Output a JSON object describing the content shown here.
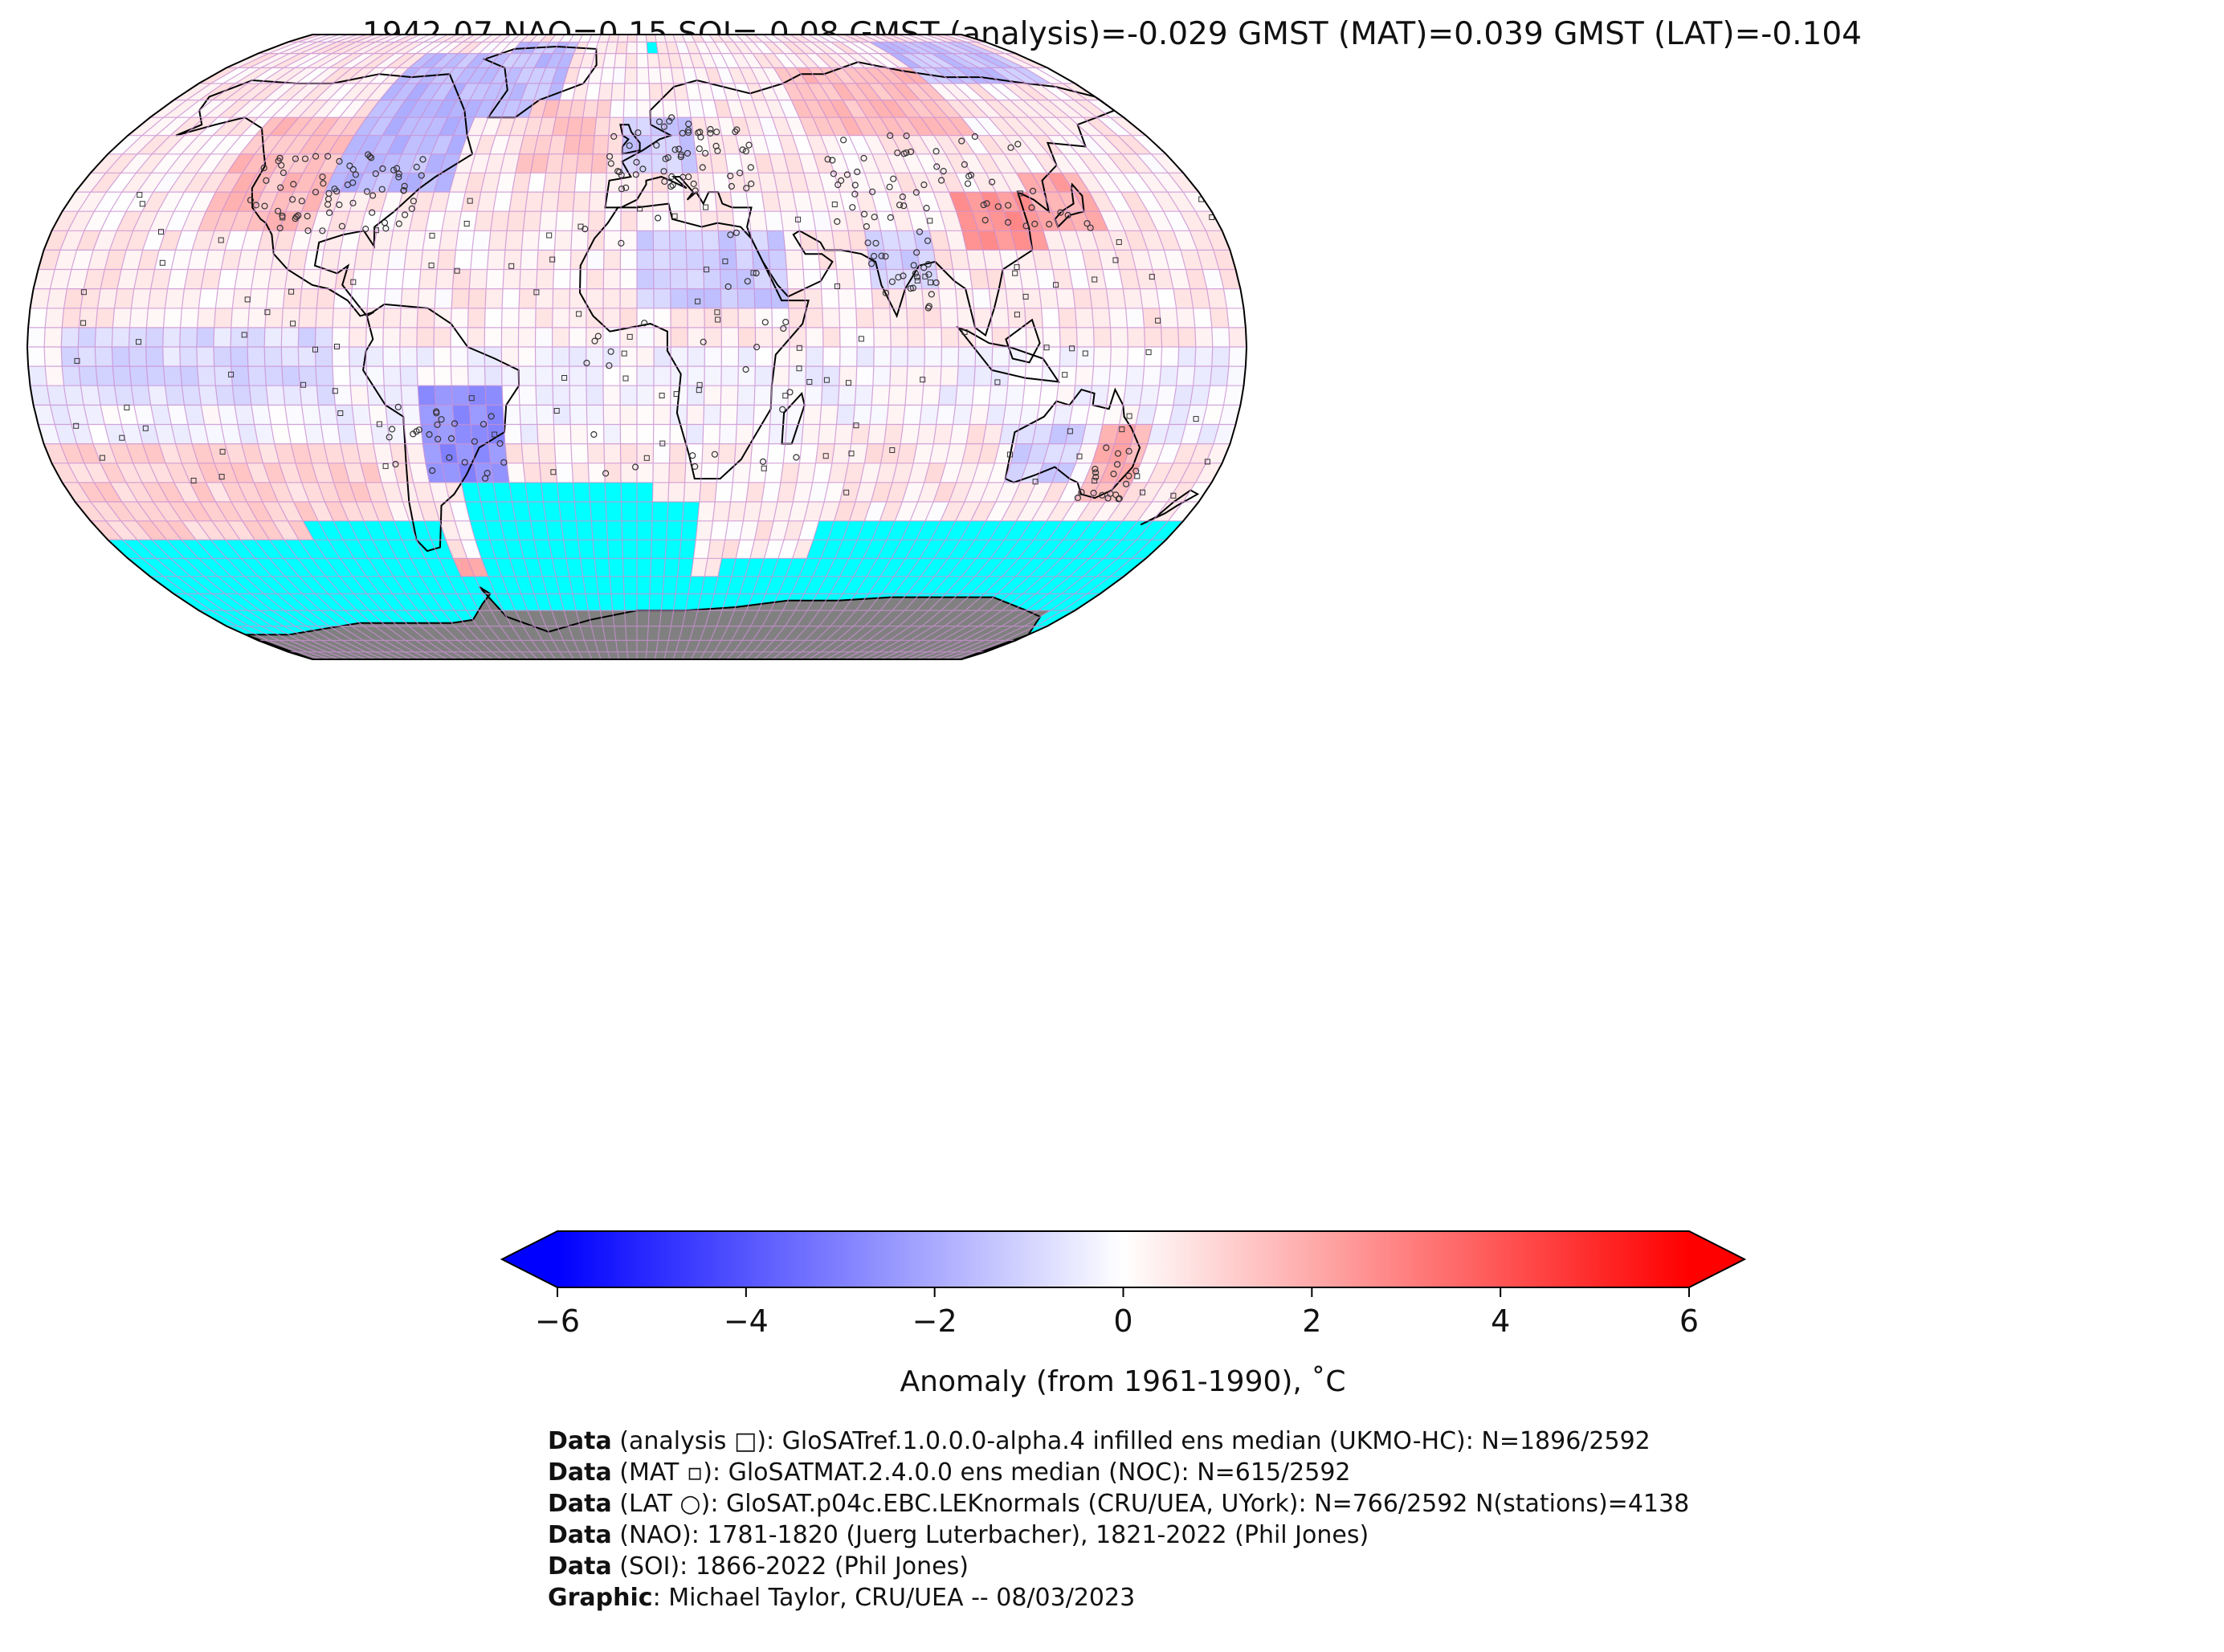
{
  "title": "1942-07 NAO=0.15 SOI=-0.08 GMST (analysis)=-0.029 GMST (MAT)=0.039 GMST (LAT)=-0.104",
  "colors": {
    "no_data_fill": "#00ffff",
    "land_ice": "#808080",
    "grid_line": "#c88fd1",
    "coast": "#000000",
    "cmap_min": "#0000ff",
    "cmap_mid": "#ffffff",
    "cmap_max": "#ff0000"
  },
  "colorbar": {
    "label": "Anomaly (from 1961-1990), ˚C",
    "min": -6,
    "max": 6,
    "ticks": [
      "−6",
      "−4",
      "−2",
      "0",
      "2",
      "4",
      "6"
    ],
    "tick_values": [
      -6,
      -4,
      -2,
      0,
      2,
      4,
      6
    ],
    "extend": "both"
  },
  "footer": [
    {
      "bold": "Data",
      "text": " (analysis □): GloSATref.1.0.0.0-alpha.4 infilled ens median (UKMO-HC): N=1896/2592"
    },
    {
      "bold": "Data",
      "text": " (MAT ▫): GloSATMAT.2.4.0.0 ens median (NOC): N=615/2592"
    },
    {
      "bold": "Data",
      "text": " (LAT ○): GloSAT.p04c.EBC.LEKnormals (CRU/UEA, UYork): N=766/2592 N(stations)=4138"
    },
    {
      "bold": "Data",
      "text": " (NAO): 1781-1820 (Juerg Luterbacher), 1821-2022 (Phil Jones)"
    },
    {
      "bold": "Data",
      "text": " (SOI): 1866-2022 (Phil Jones)"
    },
    {
      "bold": "Graphic",
      "text": ": Michael Taylor, CRU/UEA -- 08/03/2023"
    }
  ],
  "map": {
    "projection": "robinson",
    "grid_resolution_deg": 5,
    "anomaly_regions": [
      {
        "name": "north-america-west",
        "lon": [
          -135,
          -100
        ],
        "lat": [
          30,
          60
        ],
        "value": 1.5
      },
      {
        "name": "north-america-east-cold",
        "lon": [
          -100,
          -60
        ],
        "lat": [
          40,
          80
        ],
        "value": -1.6
      },
      {
        "name": "greenland-cold",
        "lon": [
          -60,
          -30
        ],
        "lat": [
          60,
          85
        ],
        "value": -1.5
      },
      {
        "name": "north-atlantic-warm",
        "lon": [
          -40,
          -10
        ],
        "lat": [
          45,
          65
        ],
        "value": 1.2
      },
      {
        "name": "europe-cold",
        "lon": [
          -5,
          20
        ],
        "lat": [
          45,
          60
        ],
        "value": -1.2
      },
      {
        "name": "siberia-warm",
        "lon": [
          60,
          120
        ],
        "lat": [
          55,
          75
        ],
        "value": 1.5
      },
      {
        "name": "arctic-asia-cold",
        "lon": [
          120,
          170
        ],
        "lat": [
          70,
          85
        ],
        "value": -1.4
      },
      {
        "name": "china-warm",
        "lon": [
          100,
          125
        ],
        "lat": [
          25,
          40
        ],
        "value": 2.5
      },
      {
        "name": "japan-warm",
        "lon": [
          125,
          145
        ],
        "lat": [
          30,
          45
        ],
        "value": 2.0
      },
      {
        "name": "africa-north-cold",
        "lon": [
          0,
          45
        ],
        "lat": [
          10,
          30
        ],
        "value": -1.2
      },
      {
        "name": "india-cold",
        "lon": [
          70,
          90
        ],
        "lat": [
          15,
          30
        ],
        "value": -1.0
      },
      {
        "name": "south-america-cold",
        "lon": [
          -65,
          -40
        ],
        "lat": [
          -35,
          -10
        ],
        "value": -2.6
      },
      {
        "name": "tropical-pacific-cold",
        "lon": [
          -170,
          -90
        ],
        "lat": [
          -15,
          5
        ],
        "value": -0.8
      },
      {
        "name": "australia-east-warm",
        "lon": [
          140,
          155
        ],
        "lat": [
          -40,
          -20
        ],
        "value": 1.8
      },
      {
        "name": "australia-west-cold",
        "lon": [
          115,
          135
        ],
        "lat": [
          -35,
          -20
        ],
        "value": -1.0
      },
      {
        "name": "drake-passage-warm",
        "lon": [
          -70,
          -30
        ],
        "lat": [
          -70,
          -55
        ],
        "value": 2.0
      },
      {
        "name": "south-pacific-warm",
        "lon": [
          -180,
          -80
        ],
        "lat": [
          -50,
          -25
        ],
        "value": 1.0
      },
      {
        "name": "indian-ocean-warm",
        "lon": [
          60,
          110
        ],
        "lat": [
          -40,
          -20
        ],
        "value": 0.5
      }
    ],
    "no_data_regions": [
      {
        "lon": [
          -55,
          5
        ],
        "lat": [
          -60,
          -35
        ]
      },
      {
        "lon": [
          5,
          20
        ],
        "lat": [
          -60,
          -40
        ]
      },
      {
        "lon": [
          -180,
          -110
        ],
        "lat": [
          -60,
          -50
        ]
      },
      {
        "lon": [
          -110,
          -65
        ],
        "lat": [
          -60,
          -45
        ]
      },
      {
        "lon": [
          -180,
          180
        ],
        "lat": [
          -90,
          -60
        ]
      },
      {
        "lon": [
          60,
          180
        ],
        "lat": [
          -60,
          -45
        ]
      },
      {
        "lon": [
          30,
          60
        ],
        "lat": [
          -60,
          -55
        ]
      },
      {
        "lon": [
          5,
          10
        ],
        "lat": [
          80,
          85
        ]
      }
    ]
  }
}
